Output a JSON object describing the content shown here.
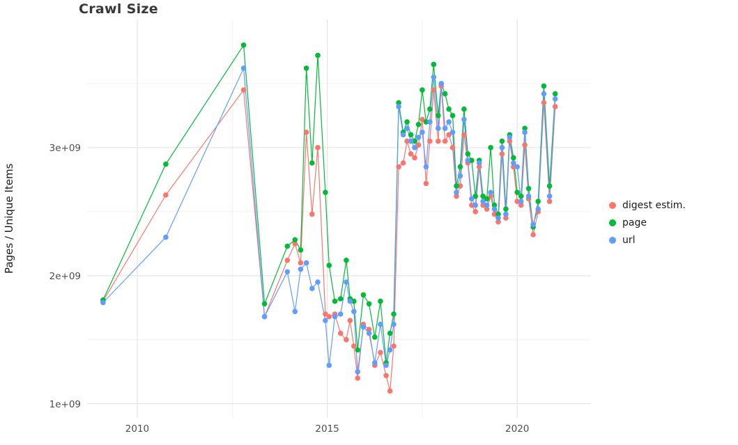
{
  "chart_data": {
    "type": "line",
    "title": "Crawl Size",
    "xlabel": "",
    "ylabel": "Pages / Unique Items",
    "legend_position": "right",
    "grid": true,
    "x_ticks": [
      2010,
      2015,
      2020
    ],
    "x_tick_labels": [
      "2010",
      "2015",
      "2020"
    ],
    "y_ticks": [
      1000000000.0,
      2000000000.0,
      3000000000.0
    ],
    "y_tick_labels": [
      "1e+09",
      "2e+09",
      "3e+09"
    ],
    "xlim": [
      2008.68,
      2021.94
    ],
    "ylim": [
      890000000.0,
      4000000000.0
    ],
    "x": [
      2009.1,
      2010.75,
      2012.8,
      2013.35,
      2013.95,
      2014.15,
      2014.3,
      2014.45,
      2014.6,
      2014.75,
      2014.95,
      2015.05,
      2015.2,
      2015.35,
      2015.5,
      2015.6,
      2015.7,
      2015.8,
      2015.95,
      2016.1,
      2016.25,
      2016.4,
      2016.55,
      2016.65,
      2016.75,
      2016.88,
      2017.0,
      2017.1,
      2017.2,
      2017.3,
      2017.4,
      2017.5,
      2017.6,
      2017.7,
      2017.8,
      2017.92,
      2018.0,
      2018.1,
      2018.2,
      2018.3,
      2018.4,
      2018.5,
      2018.6,
      2018.7,
      2018.8,
      2018.9,
      2019.0,
      2019.1,
      2019.2,
      2019.3,
      2019.4,
      2019.5,
      2019.6,
      2019.7,
      2019.8,
      2019.9,
      2020.0,
      2020.1,
      2020.2,
      2020.3,
      2020.42,
      2020.55,
      2020.7,
      2020.85,
      2021.0
    ],
    "series": [
      {
        "name": "digest estim.",
        "color": "#F8766D",
        "values": [
          1800000000.0,
          2630000000.0,
          3450000000.0,
          1680000000.0,
          2120000000.0,
          2250000000.0,
          2100000000.0,
          3120000000.0,
          2480000000.0,
          3000000000.0,
          1700000000.0,
          1680000000.0,
          1700000000.0,
          1550000000.0,
          1500000000.0,
          1650000000.0,
          1450000000.0,
          1200000000.0,
          1620000000.0,
          1580000000.0,
          1300000000.0,
          1400000000.0,
          1220000000.0,
          1100000000.0,
          1450000000.0,
          2850000000.0,
          2880000000.0,
          3050000000.0,
          2950000000.0,
          2920000000.0,
          3020000000.0,
          3220000000.0,
          2720000000.0,
          3050000000.0,
          3450000000.0,
          3050000000.0,
          3480000000.0,
          3050000000.0,
          3100000000.0,
          3000000000.0,
          2620000000.0,
          2700000000.0,
          3100000000.0,
          2880000000.0,
          2550000000.0,
          2500000000.0,
          2850000000.0,
          2550000000.0,
          2520000000.0,
          2620000000.0,
          2480000000.0,
          2420000000.0,
          2950000000.0,
          2450000000.0,
          3050000000.0,
          2850000000.0,
          2580000000.0,
          2550000000.0,
          3020000000.0,
          2600000000.0,
          2320000000.0,
          2500000000.0,
          3350000000.0,
          2580000000.0,
          3320000000.0
        ]
      },
      {
        "name": "page",
        "color": "#00BA38",
        "values": [
          1810000000.0,
          2870000000.0,
          3800000000.0,
          1780000000.0,
          2230000000.0,
          2280000000.0,
          2200000000.0,
          3620000000.0,
          2880000000.0,
          3720000000.0,
          2650000000.0,
          2080000000.0,
          1800000000.0,
          1820000000.0,
          2120000000.0,
          1820000000.0,
          1800000000.0,
          1420000000.0,
          1850000000.0,
          1780000000.0,
          1520000000.0,
          1800000000.0,
          1320000000.0,
          1550000000.0,
          1700000000.0,
          3350000000.0,
          3120000000.0,
          3200000000.0,
          3100000000.0,
          3050000000.0,
          3180000000.0,
          3450000000.0,
          3200000000.0,
          3300000000.0,
          3650000000.0,
          3250000000.0,
          3500000000.0,
          3420000000.0,
          3300000000.0,
          3250000000.0,
          2700000000.0,
          2850000000.0,
          3300000000.0,
          2950000000.0,
          2900000000.0,
          2620000000.0,
          2900000000.0,
          2620000000.0,
          2600000000.0,
          3000000000.0,
          2550000000.0,
          2480000000.0,
          3050000000.0,
          2520000000.0,
          3100000000.0,
          2920000000.0,
          2650000000.0,
          2620000000.0,
          3150000000.0,
          2680000000.0,
          2380000000.0,
          2580000000.0,
          3480000000.0,
          2700000000.0,
          3420000000.0
        ]
      },
      {
        "name": "url",
        "color": "#619CFF",
        "values": [
          1790000000.0,
          2300000000.0,
          3620000000.0,
          1680000000.0,
          2030000000.0,
          1720000000.0,
          2050000000.0,
          2100000000.0,
          1900000000.0,
          1950000000.0,
          1650000000.0,
          1300000000.0,
          1680000000.0,
          1700000000.0,
          1950000000.0,
          1800000000.0,
          1720000000.0,
          1250000000.0,
          1600000000.0,
          1550000000.0,
          1320000000.0,
          1620000000.0,
          1300000000.0,
          1420000000.0,
          1620000000.0,
          3320000000.0,
          3100000000.0,
          3150000000.0,
          3050000000.0,
          3000000000.0,
          3080000000.0,
          3120000000.0,
          2850000000.0,
          3200000000.0,
          3550000000.0,
          3150000000.0,
          3500000000.0,
          3150000000.0,
          3200000000.0,
          3120000000.0,
          2650000000.0,
          2780000000.0,
          3220000000.0,
          2900000000.0,
          2600000000.0,
          2550000000.0,
          2880000000.0,
          2580000000.0,
          2550000000.0,
          2650000000.0,
          2520000000.0,
          2450000000.0,
          3000000000.0,
          2480000000.0,
          3080000000.0,
          2880000000.0,
          2850000000.0,
          2580000000.0,
          3120000000.0,
          2620000000.0,
          2400000000.0,
          2520000000.0,
          3420000000.0,
          2620000000.0,
          3380000000.0
        ]
      }
    ]
  }
}
